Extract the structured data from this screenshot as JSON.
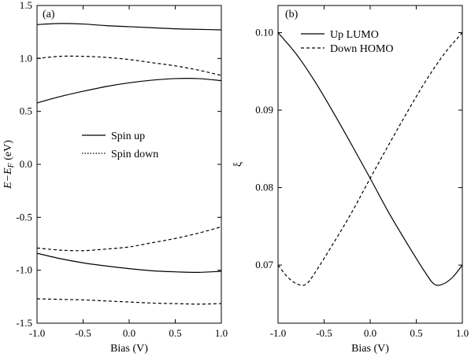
{
  "chart_data": [
    {
      "type": "line",
      "panel_label": "(a)",
      "xlabel": "Bias (V)",
      "ylabel": "E−E_F (eV)",
      "ylabel_main": "E−E",
      "ylabel_sub": "F",
      "ylabel_unit": " (eV)",
      "xlim": [
        -1.0,
        1.0
      ],
      "ylim": [
        -1.5,
        1.5
      ],
      "xticks": [
        "-1.0",
        "-0.5",
        "0.0",
        "0.5",
        "1.0"
      ],
      "yticks": [
        "-1.5",
        "-1.0",
        "-0.5",
        "0.0",
        "0.5",
        "1.0",
        "1.5"
      ],
      "legend": [
        {
          "label": "Spin up",
          "style": "solid"
        },
        {
          "label": "Spin down",
          "style": "dotted"
        }
      ],
      "legend_position": "center",
      "grid": false,
      "series": [
        {
          "style": "solid",
          "x": [
            -1.0,
            -0.75,
            -0.5,
            -0.25,
            0.0,
            0.25,
            0.5,
            0.75,
            1.0
          ],
          "y": [
            1.32,
            1.33,
            1.325,
            1.31,
            1.3,
            1.29,
            1.28,
            1.275,
            1.27
          ]
        },
        {
          "style": "dashed",
          "x": [
            -1.0,
            -0.75,
            -0.5,
            -0.25,
            0.0,
            0.25,
            0.5,
            0.75,
            1.0
          ],
          "y": [
            1.0,
            1.02,
            1.02,
            1.01,
            0.99,
            0.96,
            0.93,
            0.89,
            0.84
          ]
        },
        {
          "style": "solid",
          "x": [
            -1.0,
            -0.75,
            -0.5,
            -0.25,
            0.0,
            0.25,
            0.5,
            0.75,
            1.0
          ],
          "y": [
            0.58,
            0.64,
            0.69,
            0.735,
            0.77,
            0.795,
            0.81,
            0.81,
            0.79
          ]
        },
        {
          "style": "dashed",
          "x": [
            -1.0,
            -0.75,
            -0.5,
            -0.25,
            0.0,
            0.25,
            0.5,
            0.75,
            1.0
          ],
          "y": [
            -0.79,
            -0.81,
            -0.815,
            -0.8,
            -0.78,
            -0.74,
            -0.7,
            -0.65,
            -0.59
          ]
        },
        {
          "style": "solid",
          "x": [
            -1.0,
            -0.75,
            -0.5,
            -0.25,
            0.0,
            0.25,
            0.5,
            0.75,
            1.0
          ],
          "y": [
            -0.84,
            -0.89,
            -0.93,
            -0.96,
            -0.985,
            -1.005,
            -1.015,
            -1.02,
            -1.01
          ]
        },
        {
          "style": "dashed",
          "x": [
            -1.0,
            -0.75,
            -0.5,
            -0.25,
            0.0,
            0.25,
            0.5,
            0.75,
            1.0
          ],
          "y": [
            -1.27,
            -1.275,
            -1.28,
            -1.29,
            -1.3,
            -1.31,
            -1.315,
            -1.32,
            -1.315
          ]
        }
      ]
    },
    {
      "type": "line",
      "panel_label": "(b)",
      "xlabel": "Bias (V)",
      "ylabel": "ξ",
      "xlim": [
        -1.0,
        1.0
      ],
      "ylim": [
        0.0625,
        0.1035
      ],
      "xticks": [
        "-1.0",
        "-0.5",
        "0.0",
        "0.5",
        "1.0"
      ],
      "yticks": [
        "0.07",
        "0.08",
        "0.09",
        "0.10"
      ],
      "ytick_values": [
        0.07,
        0.08,
        0.09,
        0.1
      ],
      "legend": [
        {
          "label": "Up LUMO",
          "style": "solid"
        },
        {
          "label": "Down HOMO",
          "style": "dashed"
        }
      ],
      "legend_position": "top-right",
      "grid": false,
      "series": [
        {
          "name": "Up LUMO",
          "style": "solid",
          "x": [
            -1.0,
            -0.8,
            -0.6,
            -0.4,
            -0.2,
            0.0,
            0.2,
            0.4,
            0.6,
            0.7,
            0.8,
            0.9,
            1.0
          ],
          "y": [
            0.1,
            0.0972,
            0.0937,
            0.0897,
            0.0855,
            0.0812,
            0.0768,
            0.0728,
            0.069,
            0.0675,
            0.0676,
            0.0685,
            0.07
          ]
        },
        {
          "name": "Down HOMO",
          "style": "dashed",
          "x": [
            -1.0,
            -0.9,
            -0.8,
            -0.7,
            -0.6,
            -0.4,
            -0.2,
            0.0,
            0.2,
            0.4,
            0.6,
            0.8,
            1.0
          ],
          "y": [
            0.07,
            0.0685,
            0.0676,
            0.0675,
            0.069,
            0.0728,
            0.0768,
            0.0812,
            0.0855,
            0.0897,
            0.0937,
            0.0972,
            0.1
          ]
        }
      ]
    }
  ]
}
